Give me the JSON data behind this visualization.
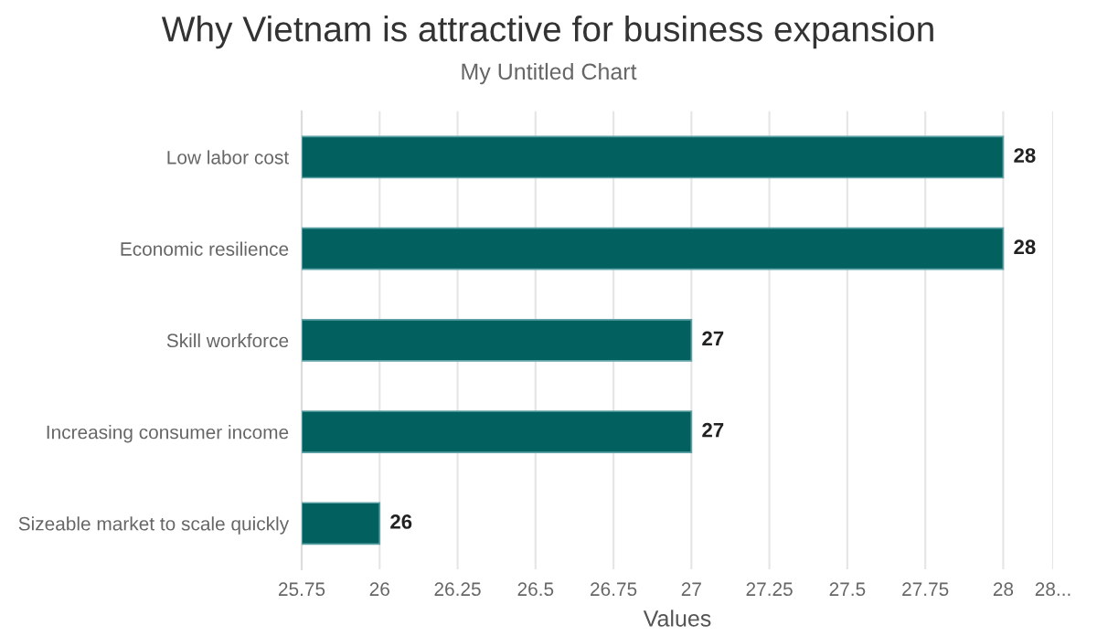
{
  "chart_data": {
    "type": "bar",
    "orientation": "horizontal",
    "title": "Why Vietnam is attractive for business expansion",
    "subtitle": "My Untitled Chart",
    "xlabel": "Values",
    "categories": [
      "Low labor cost",
      "Economic resilience",
      "Skill workforce",
      "Increasing consumer income",
      "Sizeable market to scale quickly"
    ],
    "values": [
      28,
      28,
      27,
      27,
      26
    ],
    "color": "#02605f",
    "data_labels": true,
    "xlim": [
      25.75,
      28.16
    ],
    "xticks": [
      25.75,
      26,
      26.25,
      26.5,
      26.75,
      27,
      27.25,
      27.5,
      27.75,
      28,
      {
        "value": 28.16,
        "label": "28..."
      }
    ],
    "grid": "x",
    "legend": false
  }
}
